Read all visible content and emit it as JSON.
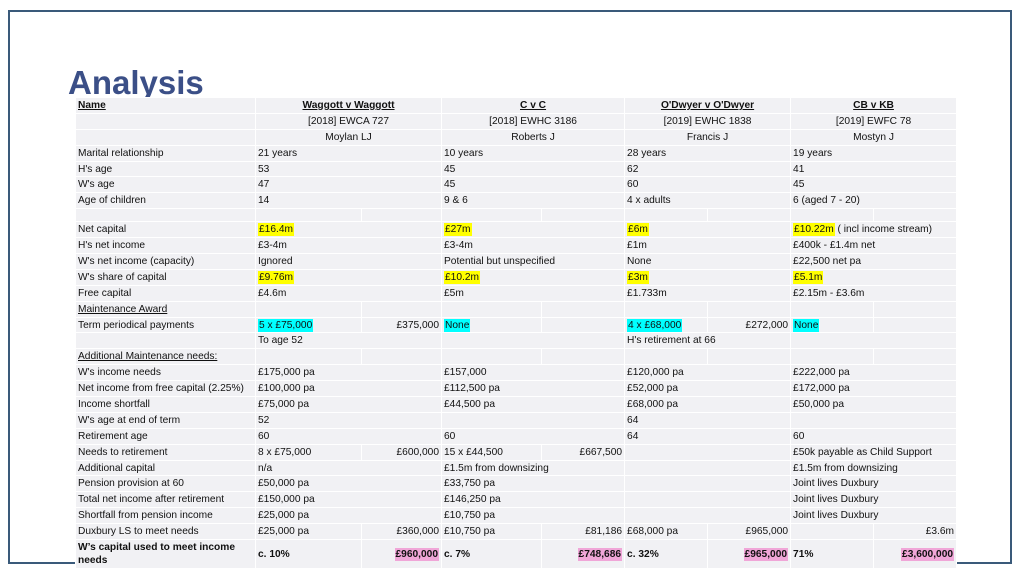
{
  "slide": {
    "title": "Analysis"
  },
  "colors": {
    "title": "#3b4f87",
    "border": "#3a5a7a",
    "cell_bg": "#f1f1f4",
    "highlight_yellow": "#ffff00",
    "highlight_cyan": "#00ffff",
    "highlight_pink": "#f0a6d8"
  },
  "header": {
    "name_label": "Name",
    "cases": [
      {
        "name": "Waggott v Waggott",
        "citation": "[2018] EWCA 727",
        "judge": "Moylan LJ"
      },
      {
        "name": "C v C",
        "citation": "[2018] EWHC 3186",
        "judge": "Roberts J"
      },
      {
        "name": "O'Dwyer v O'Dwyer",
        "citation": "[2019] EWHC 1838",
        "judge": "Francis J"
      },
      {
        "name": "CB v KB",
        "citation": "[2019] EWFC 78",
        "judge": "Mostyn J"
      }
    ]
  },
  "rows": {
    "marital": {
      "label": "Marital relationship",
      "v": [
        "21 years",
        "10 years",
        "28 years",
        "19 years"
      ]
    },
    "h_age": {
      "label": "H's age",
      "v": [
        "53",
        "45",
        "62",
        "41"
      ]
    },
    "w_age": {
      "label": "W's age",
      "v": [
        "47",
        "45",
        "60",
        "45"
      ]
    },
    "children": {
      "label": "Age of children",
      "v": [
        "14",
        "9 & 6",
        "4 x adults",
        "6 (aged 7 - 20)"
      ]
    },
    "net_capital": {
      "label": "Net capital",
      "v": [
        "£16.4m",
        "£27m",
        "£6m",
        "£10.22m"
      ],
      "extra4": " ( incl income stream)"
    },
    "h_income": {
      "label": "H's net income",
      "v": [
        "£3-4m",
        "£3-4m",
        "£1m",
        "£400k - £1.4m net"
      ]
    },
    "w_income": {
      "label": "W's net income (capacity)",
      "v": [
        "Ignored",
        "Potential but unspecified",
        "None",
        "£22,500 net pa"
      ]
    },
    "w_share": {
      "label": "W's share of capital",
      "v": [
        "£9.76m",
        "£10.2m",
        "£3m",
        "£5.1m"
      ]
    },
    "free_capital": {
      "label": "Free capital",
      "v": [
        "£4.6m",
        "£5m",
        "£1.733m",
        "£2.15m - £3.6m"
      ]
    },
    "maintenance_award": {
      "label": "Maintenance Award"
    },
    "term_pp": {
      "label": "Term periodical payments",
      "v": [
        "5 x £75,000",
        "None",
        "4 x £68,000",
        "None"
      ],
      "t": [
        "£375,000",
        "",
        "£272,000",
        ""
      ]
    },
    "term_note": {
      "v": [
        "To age 52",
        "",
        "H's retirement at 66",
        ""
      ]
    },
    "maintenance_needs": {
      "label": "Additional Maintenance needs:"
    },
    "w_needs": {
      "label": "W's income needs",
      "v": [
        "£175,000 pa",
        "£157,000",
        "£120,000 pa",
        "£222,000 pa"
      ]
    },
    "net_free": {
      "label": "Net income from free capital (2.25%)",
      "v": [
        "£100,000 pa",
        "£112,500 pa",
        "£52,000 pa",
        "£172,000 pa"
      ]
    },
    "shortfall": {
      "label": "Income shortfall",
      "v": [
        "£75,000 pa",
        "£44,500 pa",
        "£68,000 pa",
        "£50,000 pa"
      ]
    },
    "w_age_end": {
      "label": "W's age at end of term",
      "v": [
        "52",
        "",
        "64",
        ""
      ]
    },
    "retirement_age": {
      "label": "Retirement age",
      "v": [
        "60",
        "60",
        "64",
        "60"
      ]
    },
    "needs_retire": {
      "label": "Needs to retirement",
      "v": [
        "8 x £75,000",
        "15 x £44,500",
        "",
        "£50k payable as Child Support"
      ],
      "t": [
        "£600,000",
        "£667,500",
        "",
        ""
      ]
    },
    "add_capital": {
      "label": "Additional capital",
      "v": [
        "n/a",
        "£1.5m from downsizing",
        "",
        "£1.5m from downsizing"
      ]
    },
    "pension60": {
      "label": "Pension provision at 60",
      "v": [
        "£50,000 pa",
        "£33,750 pa",
        "",
        "Joint lives Duxbury"
      ]
    },
    "total_after": {
      "label": "Total net income after retirement",
      "v": [
        "£150,000 pa",
        "£146,250 pa",
        "",
        "Joint lives Duxbury"
      ]
    },
    "short_pension": {
      "label": "Shortfall from pension income",
      "v": [
        "£25,000 pa",
        "£10,750 pa",
        "",
        "Joint lives Duxbury"
      ]
    },
    "duxbury": {
      "label": "Duxbury LS to meet needs",
      "v": [
        "£25,000 pa",
        "£10,750 pa",
        "£68,000 pa",
        ""
      ],
      "t": [
        "£360,000",
        "£81,186",
        "£965,000",
        "£3.6m"
      ]
    },
    "capital_used": {
      "label": "W’s capital used to meet income needs",
      "v": [
        "c. 10%",
        "c. 7%",
        "c. 32%",
        "71%"
      ],
      "t": [
        "£960,000",
        "£748,686",
        "£965,000",
        "£3,600,000"
      ]
    }
  }
}
